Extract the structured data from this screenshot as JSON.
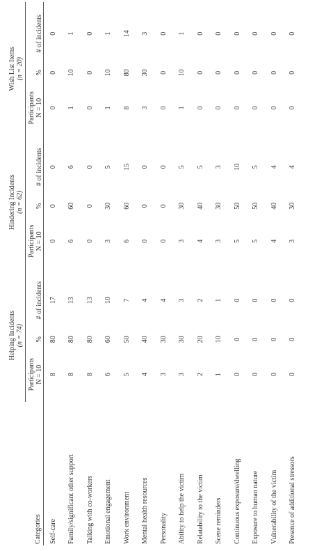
{
  "table": {
    "category_header": "Categories",
    "groups": [
      {
        "title": "Helping Incidents",
        "n": "(n = 74)",
        "columns": [
          {
            "label": "Participants",
            "sub": "N = 10"
          },
          {
            "label": "%"
          },
          {
            "label": "# of incidents"
          }
        ]
      },
      {
        "title": "Hindering Incidents",
        "n": "(n = 62)",
        "columns": [
          {
            "label": "Participants",
            "sub": "N = 10"
          },
          {
            "label": "%"
          },
          {
            "label": "# of incidents"
          }
        ]
      },
      {
        "title": "Wish List Items",
        "n": "(n = 20)",
        "columns": [
          {
            "label": "Participants",
            "sub": "N = 10"
          },
          {
            "label": "%"
          },
          {
            "label": "# of incidents"
          }
        ]
      }
    ],
    "rows": [
      {
        "category": "Self-care",
        "values": [
          8,
          80,
          17,
          0,
          0,
          0,
          0,
          0,
          0
        ]
      },
      {
        "category": "Family/significant other support",
        "values": [
          8,
          80,
          13,
          6,
          60,
          6,
          1,
          10,
          1
        ]
      },
      {
        "category": "Talking with co-workers",
        "values": [
          8,
          80,
          13,
          0,
          0,
          0,
          0,
          0,
          0
        ]
      },
      {
        "category": "Emotional engagement",
        "values": [
          6,
          60,
          10,
          3,
          30,
          5,
          1,
          10,
          1
        ]
      },
      {
        "category": "Work environment",
        "values": [
          5,
          50,
          7,
          6,
          60,
          15,
          8,
          80,
          14
        ]
      },
      {
        "category": "Mental health resources",
        "values": [
          4,
          40,
          4,
          0,
          0,
          0,
          3,
          30,
          3
        ]
      },
      {
        "category": "Personality",
        "values": [
          3,
          30,
          4,
          0,
          0,
          0,
          0,
          0,
          0
        ]
      },
      {
        "category": "Ability to help the victim",
        "values": [
          3,
          30,
          3,
          3,
          30,
          5,
          1,
          10,
          1
        ]
      },
      {
        "category": "Relatability to the victim",
        "values": [
          2,
          20,
          2,
          4,
          40,
          5,
          0,
          0,
          0
        ]
      },
      {
        "category": "Scene reminders",
        "values": [
          1,
          10,
          1,
          3,
          30,
          3,
          0,
          0,
          0
        ]
      },
      {
        "category": "Continuous exposure/dwelling",
        "values": [
          0,
          0,
          0,
          5,
          50,
          10,
          0,
          0,
          0
        ]
      },
      {
        "category": "Exposure to human nature",
        "values": [
          0,
          0,
          0,
          5,
          50,
          5,
          0,
          0,
          0
        ]
      },
      {
        "category": "Vulnerability of the victim",
        "values": [
          0,
          0,
          0,
          4,
          40,
          4,
          0,
          0,
          0
        ]
      },
      {
        "category": "Presence of additional stressors",
        "values": [
          0,
          0,
          0,
          3,
          30,
          4,
          0,
          0,
          0
        ]
      }
    ]
  }
}
